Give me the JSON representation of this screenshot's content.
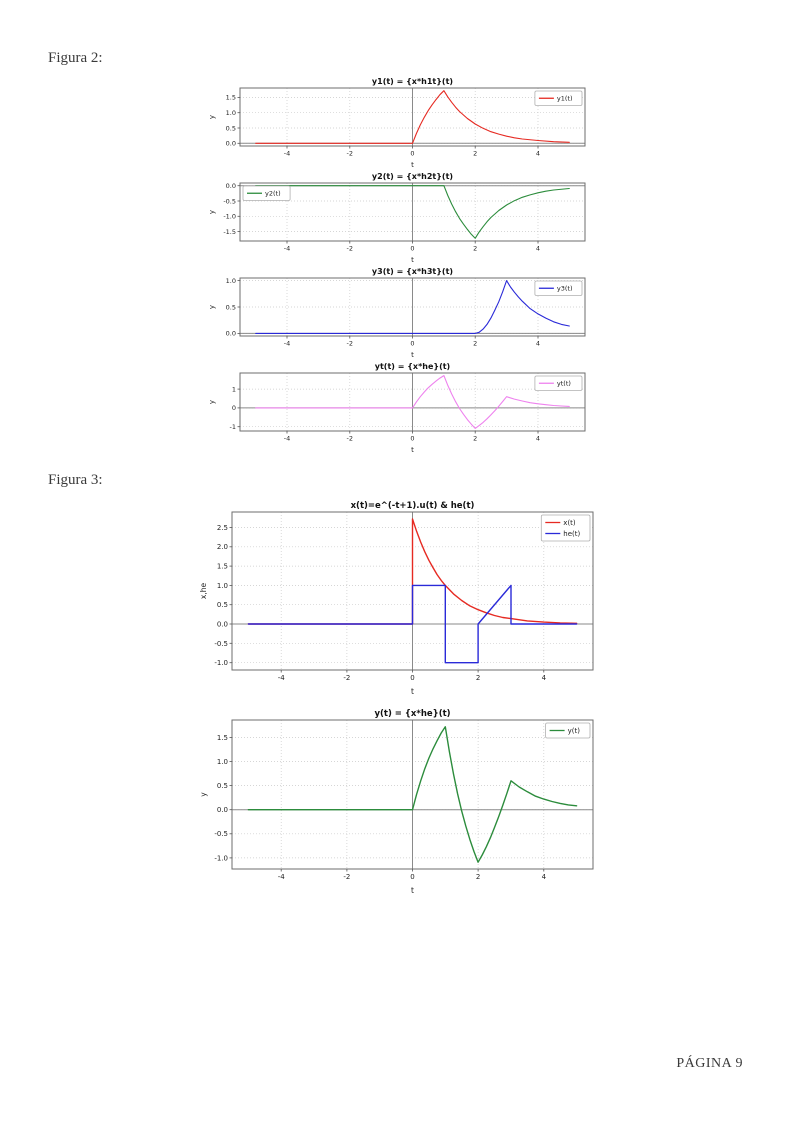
{
  "page": {
    "figure2_label": "Figura 2:",
    "figure3_label": "Figura 3:",
    "footer": "PÁGINA 9"
  },
  "colors": {
    "red": "#e62a22",
    "green": "#2c8c3c",
    "blue": "#2a2ad8",
    "violet": "#ee82ee"
  },
  "chart_data": [
    {
      "type": "line",
      "title": "y1(t) = {x*h1t}(t)",
      "xlabel": "t",
      "ylabel": "y",
      "xlim": [
        -5.5,
        5.5
      ],
      "ylim": [
        -0.09,
        1.81
      ],
      "xticks": [
        -4,
        -2,
        0,
        2,
        4
      ],
      "xtick_labels": [
        "-4",
        "-2",
        "0",
        "2",
        "4"
      ],
      "yticks": [
        0,
        0.5,
        1,
        1.5
      ],
      "ytick_labels": [
        "0.0",
        "0.5",
        "1.0",
        "1.5"
      ],
      "grid": true,
      "legend_loc": "upper-right",
      "series": [
        {
          "name": "y1(t)",
          "color": "#e62a22",
          "points": [
            [
              -5,
              0
            ],
            [
              0,
              0
            ],
            [
              0.125,
              0.32
            ],
            [
              0.25,
              0.6
            ],
            [
              0.375,
              0.85
            ],
            [
              0.5,
              1.07
            ],
            [
              0.625,
              1.26
            ],
            [
              0.75,
              1.43
            ],
            [
              0.875,
              1.59
            ],
            [
              1,
              1.72
            ],
            [
              1.125,
              1.52
            ],
            [
              1.25,
              1.34
            ],
            [
              1.375,
              1.18
            ],
            [
              1.5,
              1.04
            ],
            [
              1.75,
              0.81
            ],
            [
              2,
              0.63
            ],
            [
              2.25,
              0.49
            ],
            [
              2.5,
              0.38
            ],
            [
              2.75,
              0.3
            ],
            [
              3,
              0.23
            ],
            [
              3.25,
              0.18
            ],
            [
              3.5,
              0.14
            ],
            [
              4,
              0.09
            ],
            [
              4.5,
              0.05
            ],
            [
              5,
              0.03
            ]
          ]
        }
      ]
    },
    {
      "type": "line",
      "title": "y2(t) = {x*h2t}(t)",
      "xlabel": "t",
      "ylabel": "y",
      "xlim": [
        -5.5,
        5.5
      ],
      "ylim": [
        -1.81,
        0.09
      ],
      "xticks": [
        -4,
        -2,
        0,
        2,
        4
      ],
      "xtick_labels": [
        "-4",
        "-2",
        "0",
        "2",
        "4"
      ],
      "yticks": [
        0,
        -0.5,
        -1,
        -1.5
      ],
      "ytick_labels": [
        "0.0",
        "-0.5",
        "-1.0",
        "-1.5"
      ],
      "grid": true,
      "legend_loc": "upper-left",
      "series": [
        {
          "name": "y2(t)",
          "color": "#2c8c3c",
          "points": [
            [
              -5,
              0
            ],
            [
              1,
              0
            ],
            [
              1.125,
              -0.32
            ],
            [
              1.25,
              -0.6
            ],
            [
              1.375,
              -0.85
            ],
            [
              1.5,
              -1.07
            ],
            [
              1.625,
              -1.26
            ],
            [
              1.75,
              -1.43
            ],
            [
              1.875,
              -1.59
            ],
            [
              2,
              -1.72
            ],
            [
              2.125,
              -1.52
            ],
            [
              2.25,
              -1.34
            ],
            [
              2.375,
              -1.18
            ],
            [
              2.5,
              -1.04
            ],
            [
              2.75,
              -0.81
            ],
            [
              3,
              -0.63
            ],
            [
              3.25,
              -0.49
            ],
            [
              3.5,
              -0.38
            ],
            [
              3.75,
              -0.3
            ],
            [
              4,
              -0.23
            ],
            [
              4.25,
              -0.18
            ],
            [
              4.5,
              -0.14
            ],
            [
              5,
              -0.09
            ]
          ]
        }
      ]
    },
    {
      "type": "line",
      "title": "y3(t) = {x*h3t}(t)",
      "xlabel": "t",
      "ylabel": "y",
      "xlim": [
        -5.5,
        5.5
      ],
      "ylim": [
        -0.05,
        1.05
      ],
      "xticks": [
        -4,
        -2,
        0,
        2,
        4
      ],
      "xtick_labels": [
        "-4",
        "-2",
        "0",
        "2",
        "4"
      ],
      "yticks": [
        0,
        0.5,
        1
      ],
      "ytick_labels": [
        "0.0",
        "0.5",
        "1.0"
      ],
      "grid": true,
      "legend_loc": "upper-right",
      "series": [
        {
          "name": "y3(t)",
          "color": "#2a2ad8",
          "points": [
            [
              -5,
              0
            ],
            [
              2,
              0
            ],
            [
              2.125,
              0.02
            ],
            [
              2.25,
              0.08
            ],
            [
              2.375,
              0.17
            ],
            [
              2.5,
              0.29
            ],
            [
              2.625,
              0.44
            ],
            [
              2.75,
              0.6
            ],
            [
              2.875,
              0.79
            ],
            [
              3,
              1
            ],
            [
              3.125,
              0.88
            ],
            [
              3.25,
              0.78
            ],
            [
              3.375,
              0.69
            ],
            [
              3.5,
              0.61
            ],
            [
              3.75,
              0.47
            ],
            [
              4,
              0.37
            ],
            [
              4.25,
              0.29
            ],
            [
              4.5,
              0.22
            ],
            [
              4.75,
              0.17
            ],
            [
              5,
              0.14
            ]
          ]
        }
      ]
    },
    {
      "type": "line",
      "title": "yt(t) = {x*he}(t)",
      "xlabel": "t",
      "ylabel": "y",
      "xlim": [
        -5.5,
        5.5
      ],
      "ylim": [
        -1.23,
        1.86
      ],
      "xticks": [
        -4,
        -2,
        0,
        2,
        4
      ],
      "xtick_labels": [
        "-4",
        "-2",
        "0",
        "2",
        "4"
      ],
      "yticks": [
        -1,
        0,
        1
      ],
      "ytick_labels": [
        "-1",
        "0",
        "1"
      ],
      "grid": true,
      "legend_loc": "upper-right",
      "series": [
        {
          "name": "yt(t)",
          "color": "#ee82ee",
          "points": [
            [
              -5,
              0
            ],
            [
              0,
              0
            ],
            [
              0.125,
              0.32
            ],
            [
              0.25,
              0.6
            ],
            [
              0.375,
              0.85
            ],
            [
              0.5,
              1.07
            ],
            [
              0.625,
              1.26
            ],
            [
              0.75,
              1.43
            ],
            [
              0.875,
              1.59
            ],
            [
              1,
              1.72
            ],
            [
              1.125,
              1.2
            ],
            [
              1.25,
              0.74
            ],
            [
              1.375,
              0.33
            ],
            [
              1.5,
              -0.03
            ],
            [
              1.625,
              -0.34
            ],
            [
              1.75,
              -0.62
            ],
            [
              1.875,
              -0.87
            ],
            [
              2,
              -1.09
            ],
            [
              2.125,
              -0.94
            ],
            [
              2.25,
              -0.77
            ],
            [
              2.375,
              -0.58
            ],
            [
              2.5,
              -0.37
            ],
            [
              2.625,
              -0.15
            ],
            [
              2.75,
              0.09
            ],
            [
              2.875,
              0.34
            ],
            [
              3,
              0.6
            ],
            [
              3.25,
              0.47
            ],
            [
              3.5,
              0.37
            ],
            [
              3.75,
              0.28
            ],
            [
              4,
              0.22
            ],
            [
              4.25,
              0.17
            ],
            [
              4.5,
              0.13
            ],
            [
              4.75,
              0.1
            ],
            [
              5,
              0.08
            ]
          ]
        }
      ]
    },
    {
      "type": "line",
      "title": "x(t)=e^(-t+1).u(t) & he(t)",
      "xlabel": "t",
      "ylabel": "x,he",
      "xlim": [
        -5.5,
        5.5
      ],
      "ylim": [
        -1.19,
        2.9
      ],
      "xticks": [
        -4,
        -2,
        0,
        2,
        4
      ],
      "xtick_labels": [
        "-4",
        "-2",
        "0",
        "2",
        "4"
      ],
      "yticks": [
        2.5,
        2,
        1.5,
        1,
        0.5,
        0,
        -0.5,
        -1
      ],
      "ytick_labels": [
        "2.5",
        "2.0",
        "1.5",
        "1.0",
        "0.5",
        "0.0",
        "-0.5",
        "-1.0"
      ],
      "grid": true,
      "legend_loc": "upper-right",
      "series": [
        {
          "name": "x(t)",
          "color": "#e62a22",
          "points": [
            [
              -5,
              0
            ],
            [
              0,
              0
            ],
            [
              0,
              2.72
            ],
            [
              0.125,
              2.4
            ],
            [
              0.25,
              2.12
            ],
            [
              0.375,
              1.87
            ],
            [
              0.5,
              1.65
            ],
            [
              0.625,
              1.46
            ],
            [
              0.75,
              1.28
            ],
            [
              0.875,
              1.13
            ],
            [
              1,
              1
            ],
            [
              1.25,
              0.78
            ],
            [
              1.5,
              0.61
            ],
            [
              1.75,
              0.47
            ],
            [
              2,
              0.37
            ],
            [
              2.25,
              0.29
            ],
            [
              2.5,
              0.22
            ],
            [
              2.75,
              0.17
            ],
            [
              3,
              0.14
            ],
            [
              3.5,
              0.08
            ],
            [
              4,
              0.05
            ],
            [
              4.5,
              0.03
            ],
            [
              5,
              0.02
            ]
          ]
        },
        {
          "name": "he(t)",
          "color": "#2a2ad8",
          "points": [
            [
              -5,
              0
            ],
            [
              0,
              0
            ],
            [
              0,
              1
            ],
            [
              1,
              1
            ],
            [
              1,
              -1
            ],
            [
              2,
              -1
            ],
            [
              2,
              0
            ],
            [
              3,
              1
            ],
            [
              3,
              0
            ],
            [
              5,
              0
            ]
          ]
        }
      ]
    },
    {
      "type": "line",
      "title": "y(t) = {x*he}(t)",
      "xlabel": "t",
      "ylabel": "y",
      "xlim": [
        -5.5,
        5.5
      ],
      "ylim": [
        -1.23,
        1.86
      ],
      "xticks": [
        -4,
        -2,
        0,
        2,
        4
      ],
      "xtick_labels": [
        "-4",
        "-2",
        "0",
        "2",
        "4"
      ],
      "yticks": [
        1.5,
        1,
        0.5,
        0,
        -0.5,
        -1
      ],
      "ytick_labels": [
        "1.5",
        "1.0",
        "0.5",
        "0.0",
        "-0.5",
        "-1.0"
      ],
      "grid": true,
      "legend_loc": "upper-right",
      "series": [
        {
          "name": "y(t)",
          "color": "#2c8c3c",
          "points": [
            [
              -5,
              0
            ],
            [
              0,
              0
            ],
            [
              0.125,
              0.32
            ],
            [
              0.25,
              0.6
            ],
            [
              0.375,
              0.85
            ],
            [
              0.5,
              1.07
            ],
            [
              0.625,
              1.26
            ],
            [
              0.75,
              1.43
            ],
            [
              0.875,
              1.59
            ],
            [
              1,
              1.72
            ],
            [
              1.125,
              1.2
            ],
            [
              1.25,
              0.74
            ],
            [
              1.375,
              0.33
            ],
            [
              1.5,
              -0.03
            ],
            [
              1.625,
              -0.34
            ],
            [
              1.75,
              -0.62
            ],
            [
              1.875,
              -0.87
            ],
            [
              2,
              -1.09
            ],
            [
              2.125,
              -0.94
            ],
            [
              2.25,
              -0.77
            ],
            [
              2.375,
              -0.58
            ],
            [
              2.5,
              -0.37
            ],
            [
              2.625,
              -0.15
            ],
            [
              2.75,
              0.09
            ],
            [
              2.875,
              0.34
            ],
            [
              3,
              0.6
            ],
            [
              3.25,
              0.47
            ],
            [
              3.5,
              0.37
            ],
            [
              3.75,
              0.28
            ],
            [
              4,
              0.22
            ],
            [
              4.25,
              0.17
            ],
            [
              4.5,
              0.13
            ],
            [
              4.75,
              0.1
            ],
            [
              5,
              0.08
            ]
          ]
        }
      ]
    }
  ]
}
